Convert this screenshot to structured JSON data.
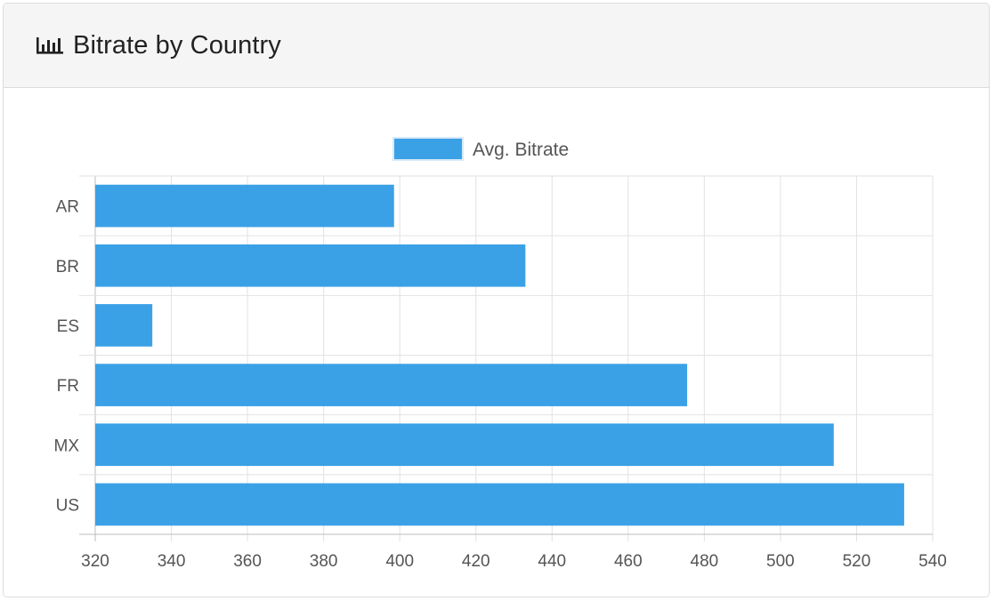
{
  "panel": {
    "title": "Bitrate by Country",
    "icon": "bar-chart-icon"
  },
  "chart_data": {
    "type": "bar",
    "orientation": "horizontal",
    "categories": [
      "AR",
      "BR",
      "ES",
      "FR",
      "MX",
      "US"
    ],
    "series": [
      {
        "name": "Avg. Bitrate",
        "values": [
          398.5,
          433,
          335,
          475.5,
          514,
          532.5
        ],
        "color": "#3ba1e6"
      }
    ],
    "title": "",
    "xlabel": "",
    "ylabel": "",
    "xlim": [
      320,
      540
    ],
    "xticks": [
      320,
      340,
      360,
      380,
      400,
      420,
      440,
      460,
      480,
      500,
      520,
      540
    ],
    "grid": true,
    "legend": "top-center"
  }
}
